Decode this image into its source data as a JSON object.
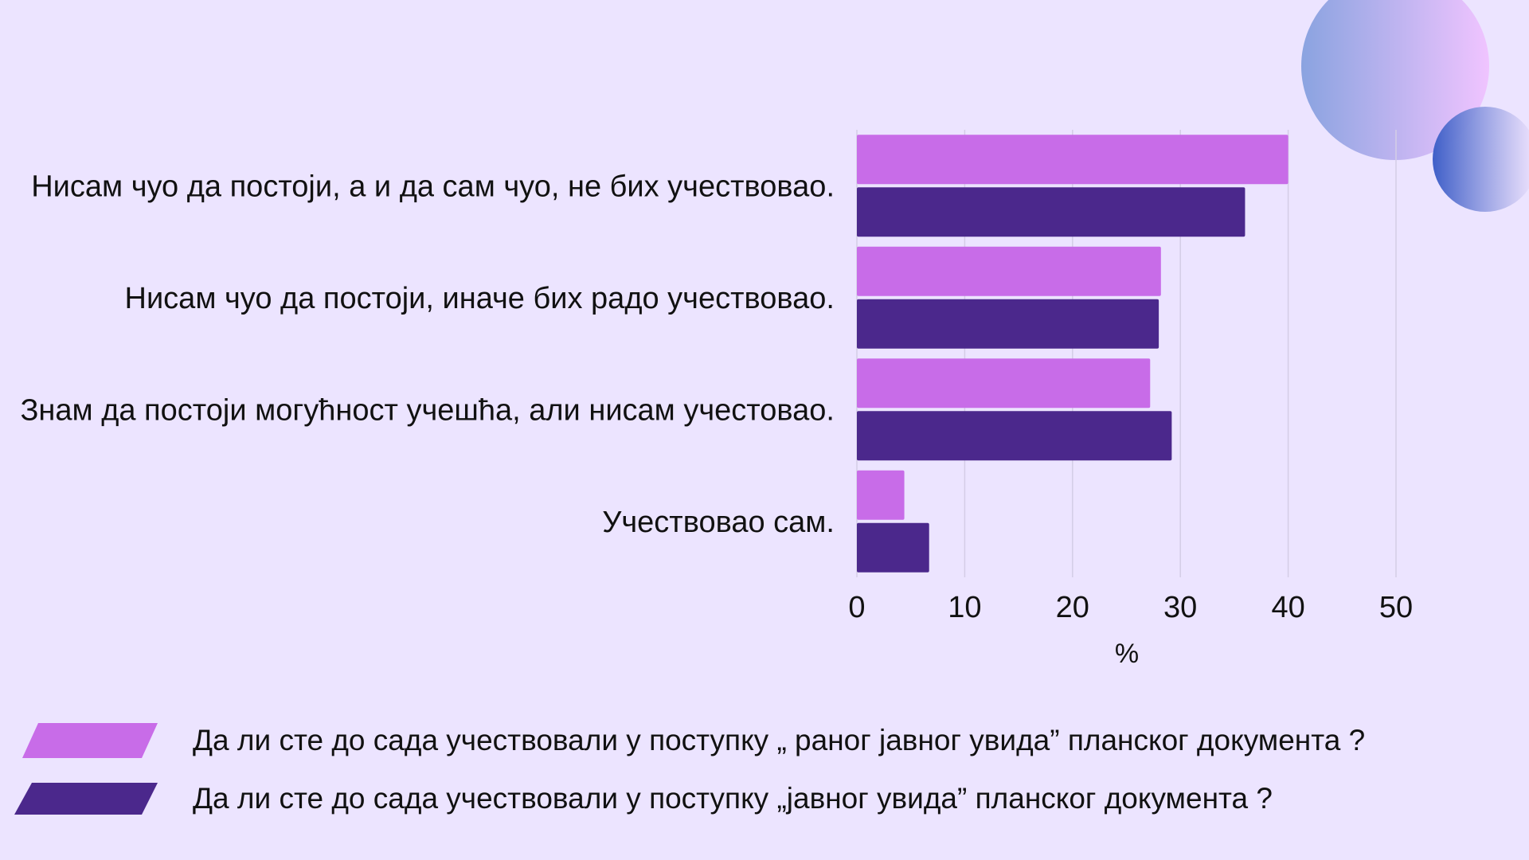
{
  "chart_data": {
    "type": "bar",
    "orientation": "horizontal",
    "categories": [
      "Нисам чуо да постоји, а и да сам чуо, не бих учествовао.",
      "Нисам чуо да постоји, иначе бих радо учествовао.",
      "Знам да постоји могућност учешћа, али нисам учестовао.",
      "Учествовао сам."
    ],
    "series": [
      {
        "name": "Да ли сте до сада учествовали у поступку „ раног јавног увида” планског документа ?",
        "color": "#c86ce8",
        "values": [
          40,
          28.2,
          27.2,
          4.4
        ]
      },
      {
        "name": "Да ли сте до сада учествовали у поступку „јавног увида” планског документа ?",
        "color": "#4b288c",
        "values": [
          36,
          28,
          29.2,
          6.7
        ]
      }
    ],
    "xlabel": "%",
    "xlim": [
      0,
      50
    ],
    "xticks": [
      0,
      10,
      20,
      30,
      40,
      50
    ],
    "grid": true,
    "legend_placement": "bottom-left"
  },
  "decor": {
    "circle_colors": [
      "#8aa3e0",
      "#f0c4ff",
      "#3f5fc8",
      "#f3e6ff"
    ]
  }
}
